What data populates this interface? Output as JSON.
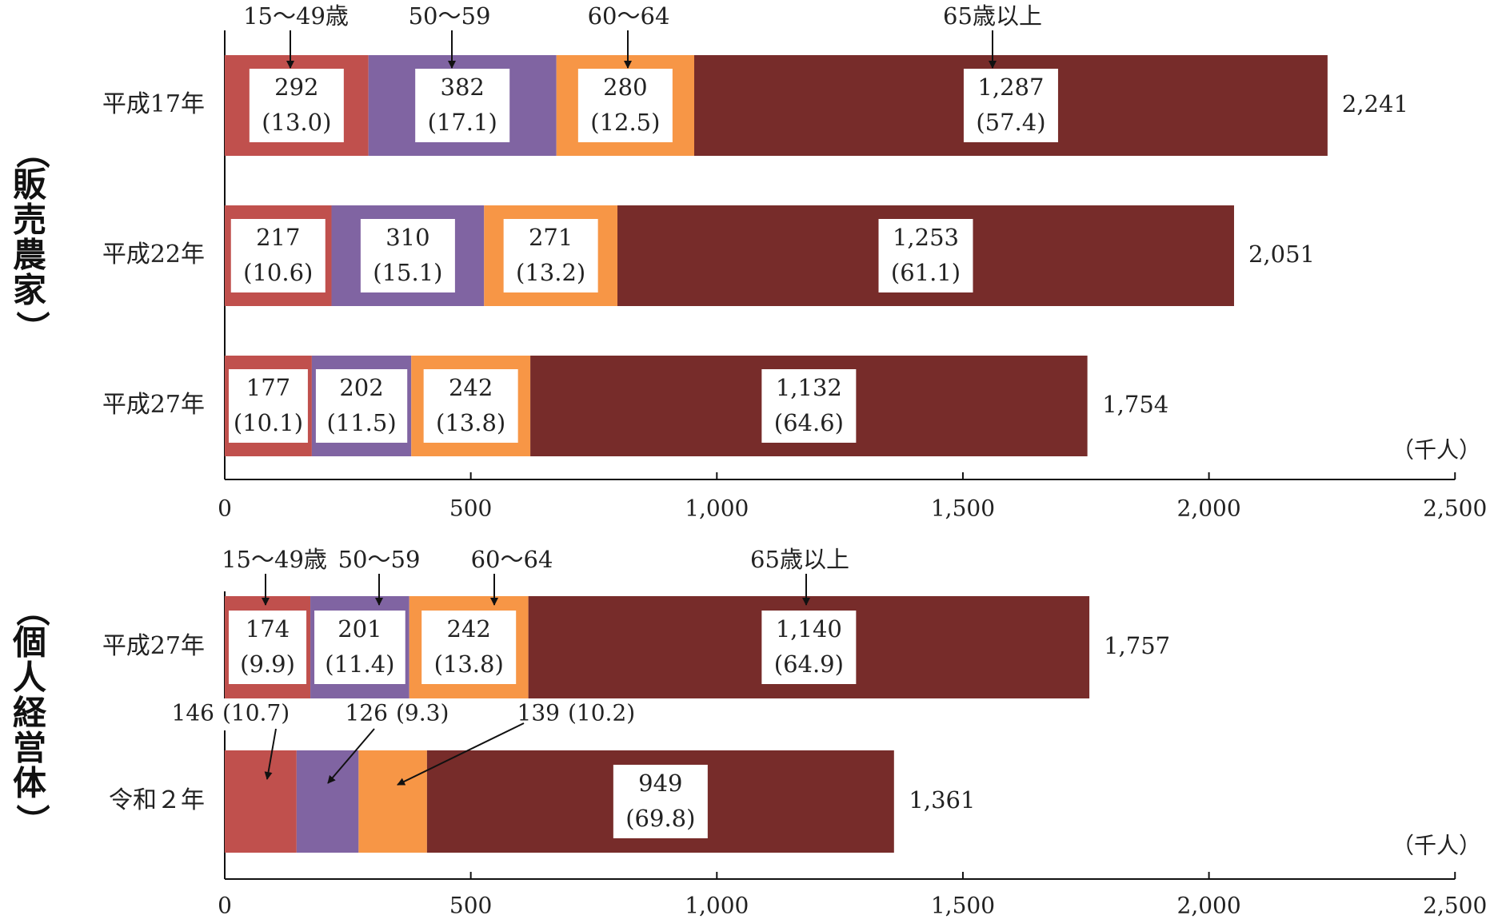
{
  "chart_data": [
    {
      "type": "bar",
      "orientation": "horizontal",
      "stacked": true,
      "group_label": "（販売農家）",
      "categories": [
        "平成17年",
        "平成22年",
        "平成27年"
      ],
      "series": [
        {
          "name": "15～49歳",
          "color": "#c0504d",
          "values": [
            292,
            217,
            177
          ],
          "shares": [
            "(13.0)",
            "(10.6)",
            "(10.1)"
          ]
        },
        {
          "name": "50～59",
          "color": "#8064a2",
          "values": [
            382,
            310,
            202
          ],
          "shares": [
            "(17.1)",
            "(15.1)",
            "(11.5)"
          ]
        },
        {
          "name": "60～64",
          "color": "#f79646",
          "values": [
            280,
            271,
            242
          ],
          "shares": [
            "(12.5)",
            "(13.2)",
            "(13.8)"
          ]
        },
        {
          "name": "65歳以上",
          "color": "#772c2a",
          "values": [
            1287,
            1253,
            1132
          ],
          "shares": [
            "(57.4)",
            "(61.1)",
            "(64.6)"
          ]
        }
      ],
      "value_labels": [
        [
          "292",
          "382",
          "280",
          "1,287"
        ],
        [
          "217",
          "310",
          "271",
          "1,253"
        ],
        [
          "177",
          "202",
          "242",
          "1,132"
        ]
      ],
      "totals": [
        2241,
        2051,
        1754
      ],
      "total_labels": [
        "2,241",
        "2,051",
        "1,754"
      ],
      "xlim": [
        0,
        2500
      ],
      "xticks": [
        0,
        500,
        1000,
        1500,
        2000,
        2500
      ],
      "xtick_labels": [
        "0",
        "500",
        "1,000",
        "1,500",
        "2,000",
        "2,500"
      ],
      "unit": "（千人）",
      "legend": "callouts above first bar"
    },
    {
      "type": "bar",
      "orientation": "horizontal",
      "stacked": true,
      "group_label": "（個人経営体）",
      "categories": [
        "平成27年",
        "令和２年"
      ],
      "series": [
        {
          "name": "15～49歳",
          "color": "#c0504d",
          "values": [
            174,
            146
          ],
          "shares": [
            "(9.9)",
            "(10.7)"
          ]
        },
        {
          "name": "50～59",
          "color": "#8064a2",
          "values": [
            201,
            126
          ],
          "shares": [
            "(11.4)",
            "(9.3)"
          ]
        },
        {
          "name": "60～64",
          "color": "#f79646",
          "values": [
            242,
            139
          ],
          "shares": [
            "(13.8)",
            "(10.2)"
          ]
        },
        {
          "name": "65歳以上",
          "color": "#772c2a",
          "values": [
            1140,
            949
          ],
          "shares": [
            "(64.9)",
            "(69.8)"
          ]
        }
      ],
      "value_labels": [
        [
          "174",
          "201",
          "242",
          "1,140"
        ],
        [
          "146",
          "126",
          "139",
          "949"
        ]
      ],
      "totals": [
        1757,
        1361
      ],
      "total_labels": [
        "1,757",
        "1,361"
      ],
      "xlim": [
        0,
        2500
      ],
      "xticks": [
        0,
        500,
        1000,
        1500,
        2000,
        2500
      ],
      "xtick_labels": [
        "0",
        "500",
        "1,000",
        "1,500",
        "2,000",
        "2,500"
      ],
      "unit": "（千人）",
      "legend": "callouts above first bar"
    }
  ]
}
